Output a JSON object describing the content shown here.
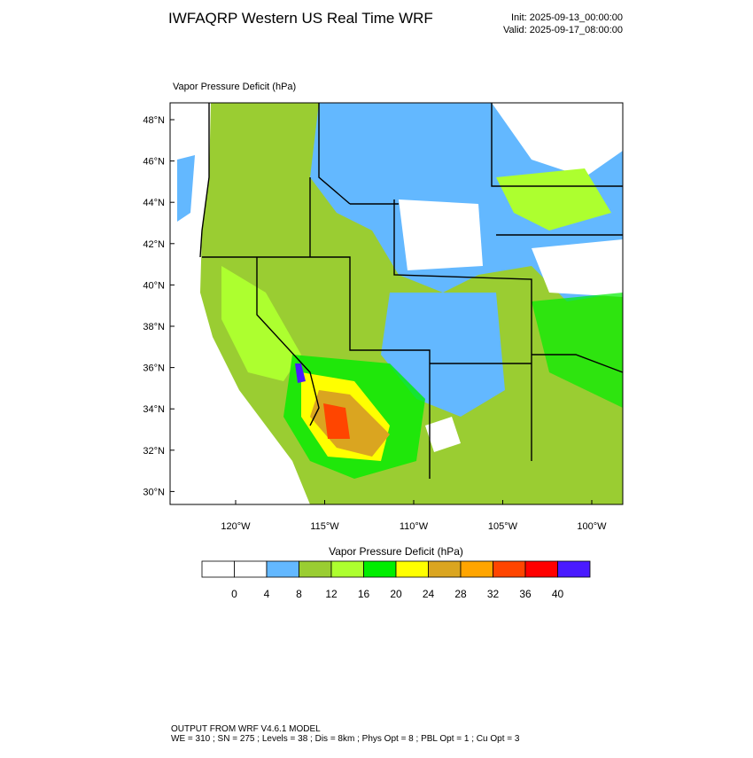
{
  "header": {
    "title": "IWFAQRP Western US Real Time WRF",
    "init": "Init: 2025-09-13_00:00:00",
    "valid": "Valid: 2025-09-17_08:00:00"
  },
  "map": {
    "label": "Vapor Pressure Deficit   (hPa)",
    "lat_labels": [
      "48°N",
      "46°N",
      "44°N",
      "42°N",
      "40°N",
      "38°N",
      "36°N",
      "34°N",
      "32°N",
      "30°N"
    ],
    "lon_labels": [
      "120°W",
      "115°W",
      "110°W",
      "105°W",
      "100°W"
    ]
  },
  "colorbar": {
    "title": "Vapor Pressure Deficit  (hPa)",
    "colors": [
      "#ffffff",
      "#ffffff",
      "#63b8ff",
      "#9acd32",
      "#adff2f",
      "#00ee00",
      "#ffff00",
      "#daa520",
      "#ffa500",
      "#ff4500",
      "#ff0000",
      "#4a1aff"
    ],
    "labels": [
      "0",
      "4",
      "8",
      "12",
      "16",
      "20",
      "24",
      "28",
      "32",
      "36",
      "40"
    ]
  },
  "footer": {
    "line1": "OUTPUT FROM WRF V4.6.1 MODEL",
    "line2": "WE = 310 ; SN = 275 ; Levels = 38 ; Dis = 8km ; Phys Opt = 8 ; PBL Opt = 1 ; Cu Opt = 3"
  }
}
